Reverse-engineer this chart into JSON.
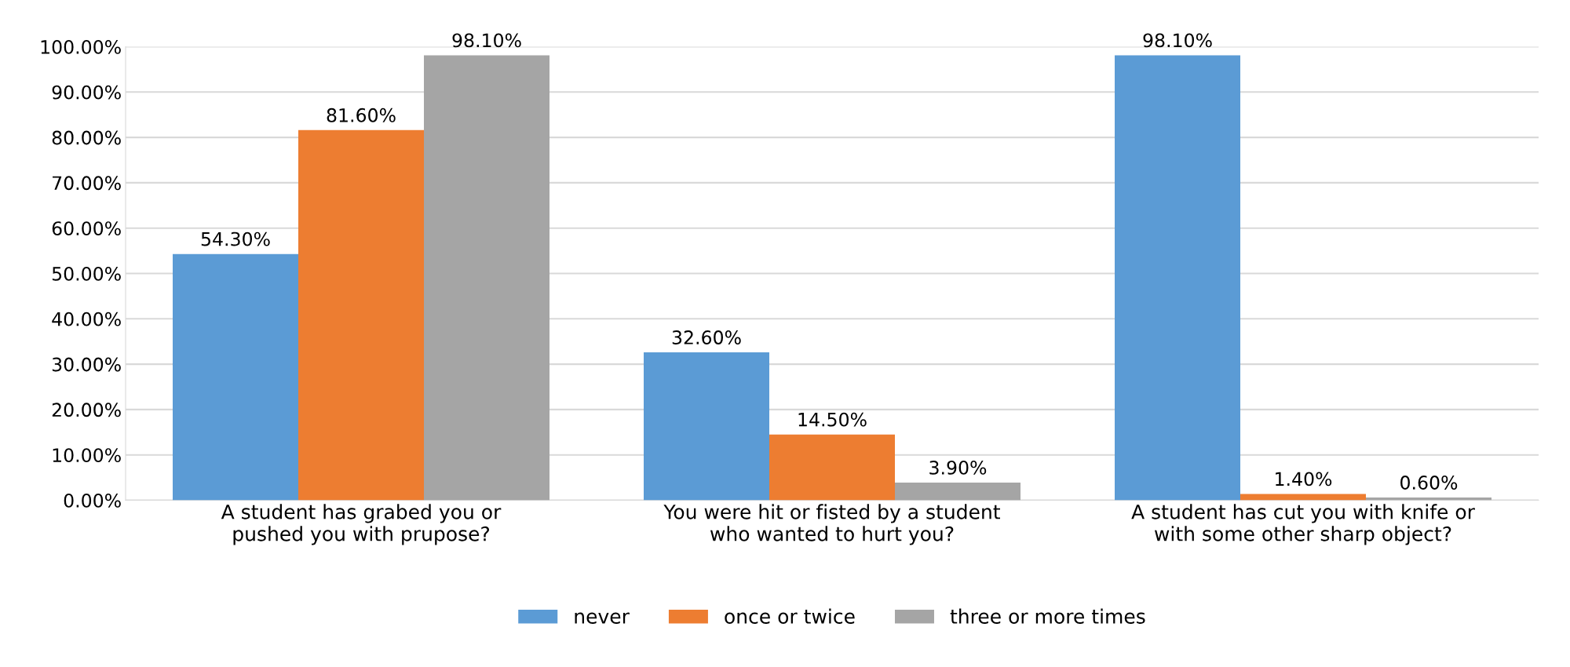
{
  "chart_data": {
    "type": "bar",
    "categories": [
      "A student has grabed you or\npushed you with prupose?",
      "You were hit or fisted by a student\nwho wanted to hurt you?",
      "A student has cut you with knife or\nwith some other sharp object?"
    ],
    "series": [
      {
        "name": "never",
        "color": "#5b9bd5",
        "values": [
          54.3,
          32.6,
          98.1
        ],
        "value_labels": [
          "54.30%",
          "32.60%",
          "98.10%"
        ]
      },
      {
        "name": "once or twice",
        "color": "#ed7d31",
        "values": [
          81.6,
          14.5,
          1.4
        ],
        "value_labels": [
          "81.60%",
          "14.50%",
          "1.40%"
        ]
      },
      {
        "name": "three or more times",
        "color": "#a5a5a5",
        "values": [
          98.1,
          3.9,
          0.6
        ],
        "value_labels": [
          "98.10%",
          "3.90%",
          "0.60%"
        ]
      }
    ],
    "ylim": [
      0,
      100
    ],
    "yticks": [
      {
        "value": 0,
        "label": "0.00%"
      },
      {
        "value": 10,
        "label": "10.00%"
      },
      {
        "value": 20,
        "label": "20.00%"
      },
      {
        "value": 30,
        "label": "30.00%"
      },
      {
        "value": 40,
        "label": "40.00%"
      },
      {
        "value": 50,
        "label": "50.00%"
      },
      {
        "value": 60,
        "label": "60.00%"
      },
      {
        "value": 70,
        "label": "70.00%"
      },
      {
        "value": 80,
        "label": "80.00%"
      },
      {
        "value": 90,
        "label": "90.00%"
      },
      {
        "value": 100,
        "label": "100.00%"
      }
    ],
    "grid": "y",
    "legend": "bottom"
  }
}
